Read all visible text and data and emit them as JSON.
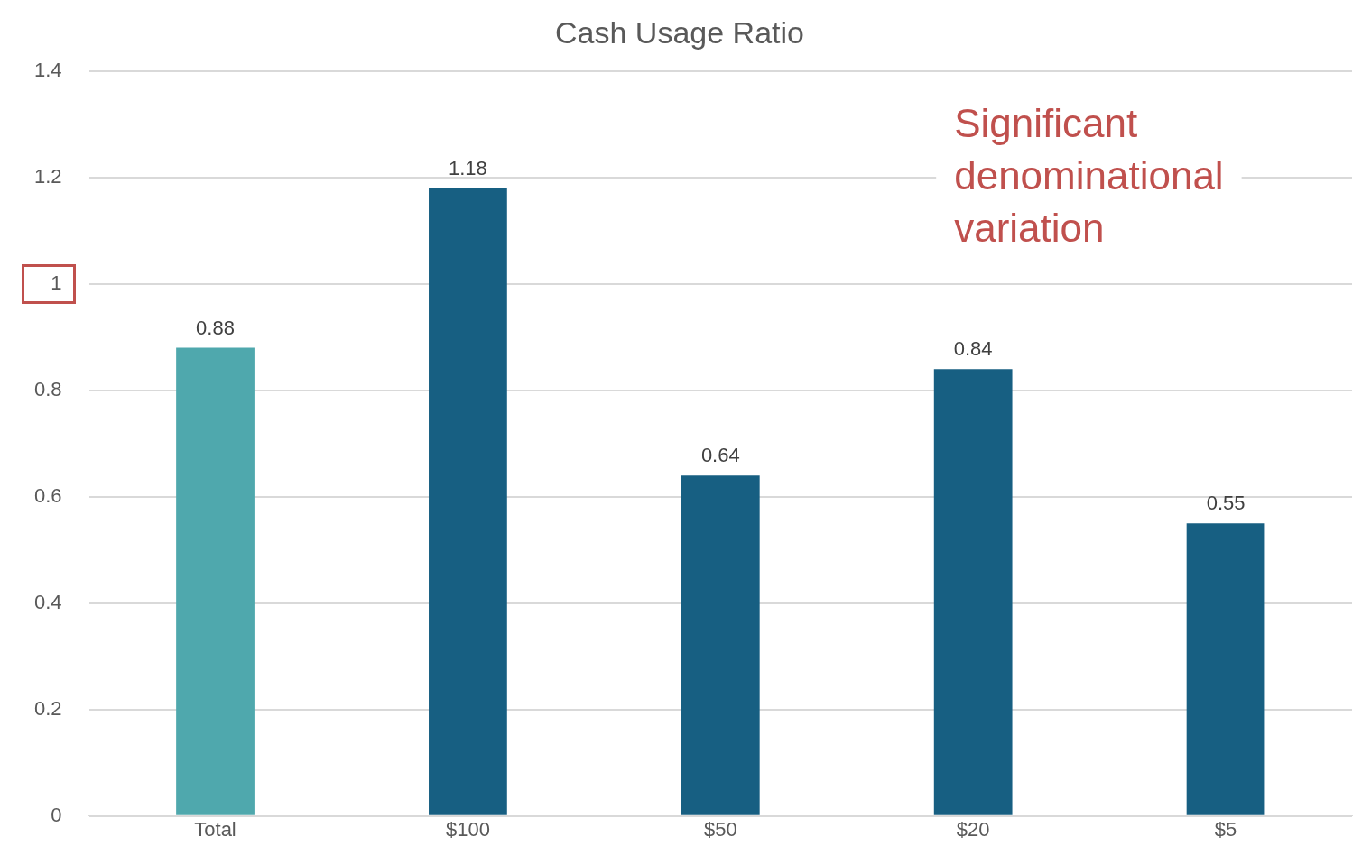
{
  "chart_data": {
    "type": "bar",
    "title": "Cash Usage Ratio",
    "categories": [
      "Total",
      "$100",
      "$50",
      "$20",
      "$5"
    ],
    "values": [
      0.88,
      1.18,
      0.64,
      0.84,
      0.55
    ],
    "colors": [
      "#4fa8ad",
      "#175f82",
      "#175f82",
      "#175f82",
      "#175f82"
    ],
    "ylim": [
      0,
      1.4
    ],
    "yticks": [
      0,
      0.2,
      0.4,
      0.6,
      0.8,
      1,
      1.2,
      1.4
    ],
    "grid": "y",
    "data_labels": true,
    "legend": false,
    "annotations": [
      "Significant denominational variation"
    ]
  }
}
